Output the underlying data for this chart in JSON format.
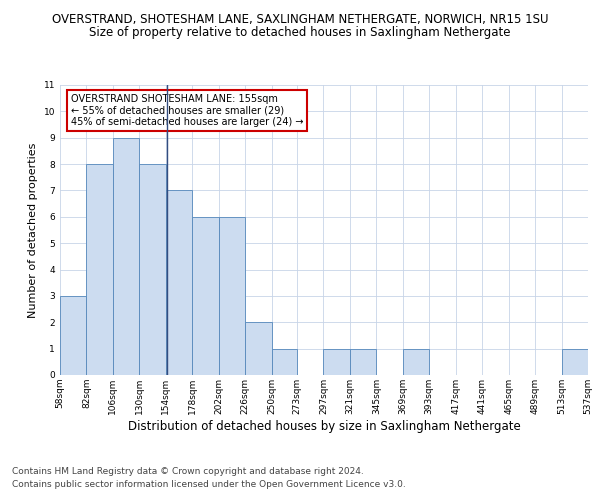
{
  "title_line1": "OVERSTRAND, SHOTESHAM LANE, SAXLINGHAM NETHERGATE, NORWICH, NR15 1SU",
  "title_line2": "Size of property relative to detached houses in Saxlingham Nethergate",
  "xlabel": "Distribution of detached houses by size in Saxlingham Nethergate",
  "ylabel": "Number of detached properties",
  "bar_edges": [
    58,
    82,
    106,
    130,
    154,
    178,
    202,
    226,
    250,
    273,
    297,
    321,
    345,
    369,
    393,
    417,
    441,
    465,
    489,
    513,
    537
  ],
  "bar_heights": [
    3,
    8,
    9,
    8,
    7,
    6,
    6,
    2,
    1,
    0,
    1,
    1,
    0,
    1,
    0,
    0,
    0,
    0,
    0,
    1
  ],
  "bar_color": "#ccdcf0",
  "bar_edge_color": "#5588bb",
  "vline_x": 155,
  "vline_color": "#334d80",
  "ylim": [
    0,
    11
  ],
  "yticks": [
    0,
    1,
    2,
    3,
    4,
    5,
    6,
    7,
    8,
    9,
    10,
    11
  ],
  "annotation_title": "OVERSTRAND SHOTESHAM LANE: 155sqm",
  "annotation_line1": "← 55% of detached houses are smaller (29)",
  "annotation_line2": "45% of semi-detached houses are larger (24) →",
  "annotation_box_color": "#ffffff",
  "annotation_box_edge_color": "#cc0000",
  "footer_line1": "Contains HM Land Registry data © Crown copyright and database right 2024.",
  "footer_line2": "Contains public sector information licensed under the Open Government Licence v3.0.",
  "bg_color": "#ffffff",
  "grid_color": "#c8d4e8",
  "title_fontsize": 8.5,
  "subtitle_fontsize": 8.5,
  "xlabel_fontsize": 8.5,
  "ylabel_fontsize": 8,
  "tick_label_fontsize": 6.5,
  "annotation_fontsize": 7,
  "footer_fontsize": 6.5
}
